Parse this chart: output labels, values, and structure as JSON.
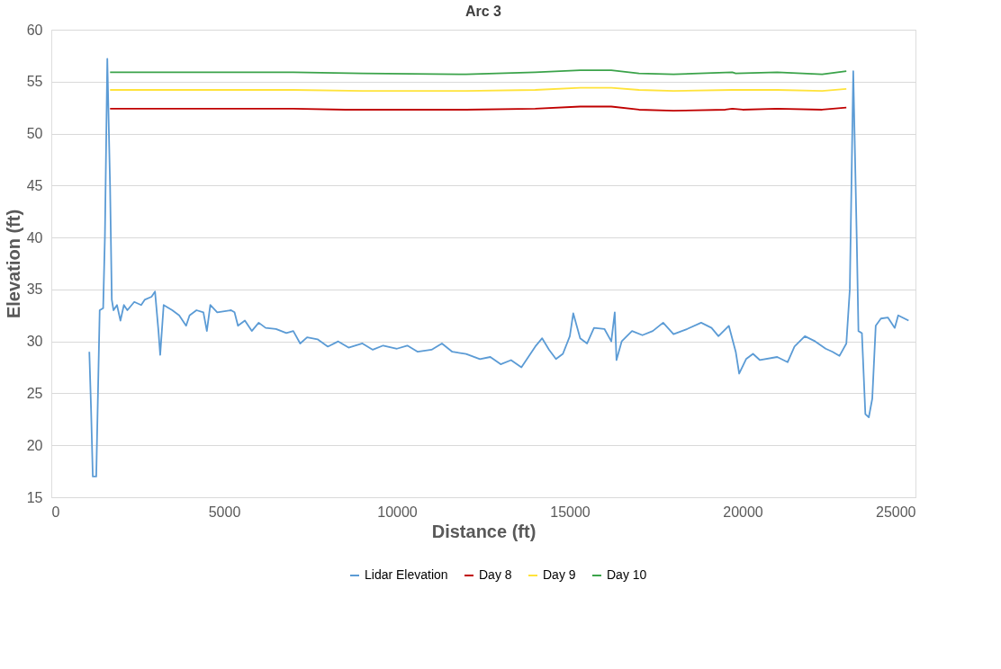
{
  "chart_data": {
    "type": "line",
    "title": "Arc 3",
    "xlabel": "Distance (ft)",
    "ylabel": "Elevation (ft)",
    "xlim": [
      0,
      25000
    ],
    "xticks": [
      0,
      5000,
      10000,
      15000,
      20000,
      25000
    ],
    "ylim": [
      15,
      60
    ],
    "yticks": [
      15,
      20,
      25,
      30,
      35,
      40,
      45,
      50,
      55,
      60
    ],
    "grid": "y",
    "legend": "bottom",
    "marker": "none",
    "line_style": "solid",
    "series": [
      {
        "name": "Lidar Elevation",
        "color": "#5b9bd5",
        "x": [
          1100,
          1150,
          1200,
          1300,
          1350,
          1400,
          1500,
          1550,
          1620,
          1700,
          1750,
          1800,
          1900,
          2000,
          2100,
          2200,
          2400,
          2600,
          2700,
          2900,
          3000,
          3100,
          3150,
          3250,
          3500,
          3700,
          3900,
          4000,
          4200,
          4400,
          4500,
          4600,
          4800,
          5200,
          5300,
          5400,
          5600,
          5800,
          6000,
          6200,
          6500,
          6800,
          7000,
          7200,
          7400,
          7700,
          8000,
          8300,
          8600,
          9000,
          9300,
          9600,
          10000,
          10300,
          10600,
          11000,
          11300,
          11600,
          12000,
          12400,
          12700,
          13000,
          13300,
          13600,
          13800,
          14000,
          14200,
          14400,
          14600,
          14800,
          15000,
          15100,
          15300,
          15500,
          15700,
          16000,
          16200,
          16300,
          16350,
          16500,
          16800,
          17100,
          17400,
          17700,
          18000,
          18400,
          18800,
          19100,
          19300,
          19600,
          19800,
          19900,
          20100,
          20300,
          20500,
          21000,
          21300,
          21500,
          21800,
          22100,
          22400,
          22600,
          22800,
          23000,
          23100,
          23200,
          23300,
          23350,
          23450,
          23550,
          23650,
          23750,
          23850,
          24000,
          24200,
          24400,
          24500,
          24800
        ],
        "values": [
          29,
          23.5,
          17,
          17,
          25,
          33,
          33.2,
          40,
          57.2,
          45,
          34,
          33,
          33.5,
          32,
          33.5,
          33,
          33.8,
          33.5,
          34,
          34.3,
          34.8,
          31,
          28.7,
          33.5,
          33,
          32.5,
          31.5,
          32.5,
          33,
          32.8,
          31,
          33.5,
          32.8,
          33,
          32.8,
          31.5,
          32,
          31,
          31.8,
          31.3,
          31.2,
          30.8,
          31,
          29.8,
          30.4,
          30.2,
          29.5,
          30,
          29.4,
          29.8,
          29.2,
          29.6,
          29.3,
          29.6,
          29,
          29.2,
          29.8,
          29,
          28.8,
          28.3,
          28.5,
          27.8,
          28.2,
          27.5,
          28.5,
          29.5,
          30.3,
          29.2,
          28.3,
          28.8,
          30.5,
          32.7,
          30.3,
          29.8,
          31.3,
          31.2,
          30,
          32.8,
          28.2,
          30,
          31,
          30.6,
          31,
          31.8,
          30.7,
          31.2,
          31.8,
          31.3,
          30.5,
          31.5,
          29,
          26.9,
          28.3,
          28.8,
          28.2,
          28.5,
          28,
          29.5,
          30.5,
          30,
          29.3,
          29,
          28.6,
          29.8,
          35,
          56,
          40,
          31,
          30.8,
          23,
          22.7,
          24.5,
          31.5,
          32.2,
          32.3,
          31.3,
          32.5,
          32
        ]
      },
      {
        "name": "Day 8",
        "color": "#c00000",
        "x": [
          1700,
          7000,
          8500,
          12000,
          14000,
          15300,
          16200,
          17000,
          18000,
          19500,
          19700,
          20000,
          21000,
          22300,
          23000
        ],
        "values": [
          52.4,
          52.4,
          52.3,
          52.3,
          52.4,
          52.6,
          52.6,
          52.3,
          52.2,
          52.3,
          52.4,
          52.3,
          52.4,
          52.3,
          52.5
        ]
      },
      {
        "name": "Day 9",
        "color": "#ffe33b",
        "x": [
          1700,
          7000,
          9000,
          12000,
          14000,
          15300,
          16200,
          17000,
          18000,
          19700,
          21000,
          22300,
          23000
        ],
        "values": [
          54.2,
          54.2,
          54.1,
          54.1,
          54.2,
          54.4,
          54.4,
          54.2,
          54.1,
          54.2,
          54.2,
          54.1,
          54.3
        ]
      },
      {
        "name": "Day 10",
        "color": "#3ba34a",
        "x": [
          1700,
          7000,
          9000,
          12000,
          14000,
          15300,
          16200,
          17000,
          18000,
          19700,
          19800,
          21000,
          22300,
          23000
        ],
        "values": [
          55.9,
          55.9,
          55.8,
          55.7,
          55.9,
          56.1,
          56.1,
          55.8,
          55.7,
          55.9,
          55.8,
          55.9,
          55.7,
          56
        ]
      }
    ]
  }
}
